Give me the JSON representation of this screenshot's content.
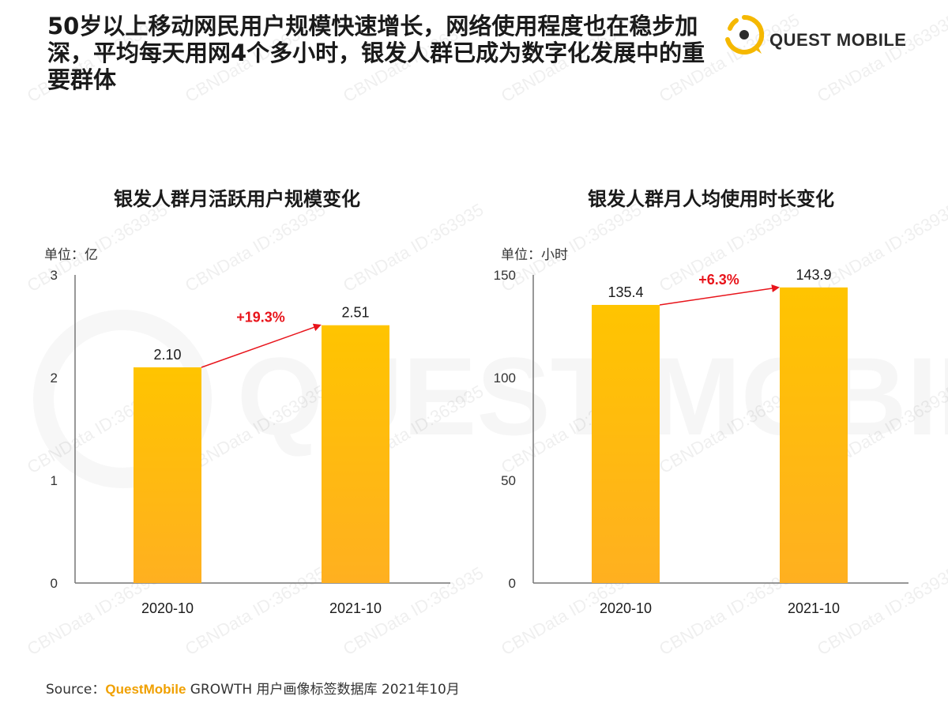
{
  "headline": "50岁以上移动网民用户规模快速增长，网络使用程度也在稳步加深，平均每天用网4个多小时，银发人群已成为数字化发展中的重要群体",
  "brand": {
    "name": "QUEST MOBILE",
    "logo_icon": "quest-mobile-logo-icon",
    "watermark_text": "QUEST MOBILE"
  },
  "source": {
    "label": "Source：",
    "brand": "QuestMobile",
    "rest": " GROWTH 用户画像标签数据库 2021年10月"
  },
  "watermark_text": "CBNData ID:363935",
  "colors": {
    "bar_top": "#ffc400",
    "bar_bottom": "#ffb020",
    "arrow": "#e8141b",
    "growth_label": "#e8141b",
    "axis": "#777777",
    "brand_accent": "#f5b800"
  },
  "chart_data": [
    {
      "type": "bar",
      "title": "银发人群月活跃用户规模变化",
      "unit_label": "单位：亿",
      "categories": [
        "2020-10",
        "2021-10"
      ],
      "values": [
        2.1,
        2.51
      ],
      "value_labels": [
        "2.10",
        "2.51"
      ],
      "yticks": [
        "0",
        "1",
        "2",
        "3"
      ],
      "ylim": [
        0,
        3
      ],
      "growth_label": "+19.3%",
      "grid": false
    },
    {
      "type": "bar",
      "title": "银发人群月人均使用时长变化",
      "unit_label": "单位：小时",
      "categories": [
        "2020-10",
        "2021-10"
      ],
      "values": [
        135.4,
        143.9
      ],
      "value_labels": [
        "135.4",
        "143.9"
      ],
      "yticks": [
        "0",
        "50",
        "100",
        "150"
      ],
      "ylim": [
        0,
        150
      ],
      "growth_label": "+6.3%",
      "grid": false
    }
  ]
}
